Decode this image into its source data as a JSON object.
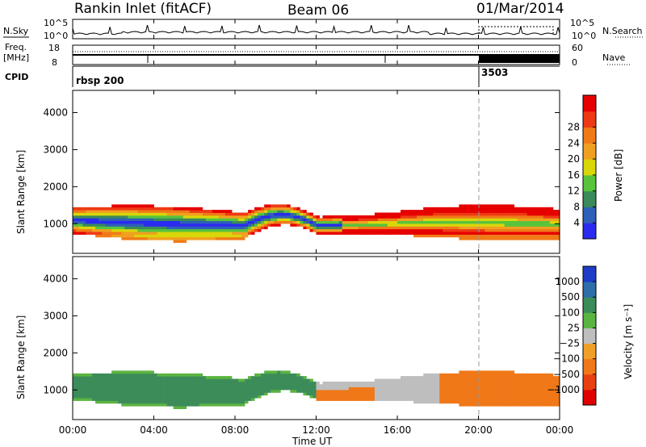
{
  "header": {
    "title": "Rankin Inlet (fitACF)",
    "beam": "Beam 06",
    "date": "01/Mar/2014"
  },
  "chart_data": [
    {
      "type": "line",
      "panel": "noise",
      "left_label": "N.Sky",
      "right_label": "N.Search",
      "y_ticks_left": [
        "10^5",
        "10^0"
      ],
      "y_ticks_right": [
        "10^5",
        "10^0"
      ]
    },
    {
      "type": "line",
      "panel": "frequency",
      "left_label_1": "Freq.",
      "left_label_2": "[MHz]",
      "right_label": "Nave",
      "y_ticks_left": [
        "18",
        "8"
      ],
      "y_ticks_right": [
        "60",
        "0"
      ]
    },
    {
      "type": "bar",
      "panel": "cpid",
      "left_label": "CPID",
      "segments": [
        {
          "label": "rbsp 200",
          "x_start": "00:00"
        },
        {
          "label": "3503",
          "x_start": "20:00"
        }
      ]
    },
    {
      "type": "heatmap",
      "panel": "power",
      "ylabel": "Slant Range [km]",
      "yticks": [
        "1000",
        "2000",
        "3000",
        "4000"
      ],
      "ylim": [
        200,
        4600
      ],
      "colorbar_label": "Power [dB]",
      "colorbar_ticks": [
        "4",
        "8",
        "12",
        "16",
        "20",
        "24",
        "28"
      ],
      "colorbar_colors": [
        "#2a2af0",
        "#2f5fb8",
        "#3a8a5a",
        "#57c43c",
        "#d9d60a",
        "#f0a020",
        "#f07a18",
        "#ee3a14",
        "#e60000"
      ]
    },
    {
      "type": "heatmap",
      "panel": "velocity",
      "ylabel": "Slant Range [km]",
      "yticks": [
        "1000",
        "2000",
        "3000",
        "4000"
      ],
      "ylim": [
        200,
        4600
      ],
      "colorbar_label": "Velocity [m s⁻¹]",
      "colorbar_ticks": [
        "1000",
        "500",
        "100",
        "25",
        "−25",
        "−100",
        "−500",
        "−1000"
      ],
      "colorbar_colors": [
        "#1e3cc8",
        "#2f6ea8",
        "#3c8c5a",
        "#5ab440",
        "#bebebe",
        "#f0a028",
        "#f07818",
        "#e84010",
        "#e00000"
      ],
      "xlabel": "Time UT",
      "xticks": [
        "00:00",
        "04:00",
        "08:00",
        "12:00",
        "16:00",
        "20:00",
        "00:00"
      ]
    }
  ]
}
